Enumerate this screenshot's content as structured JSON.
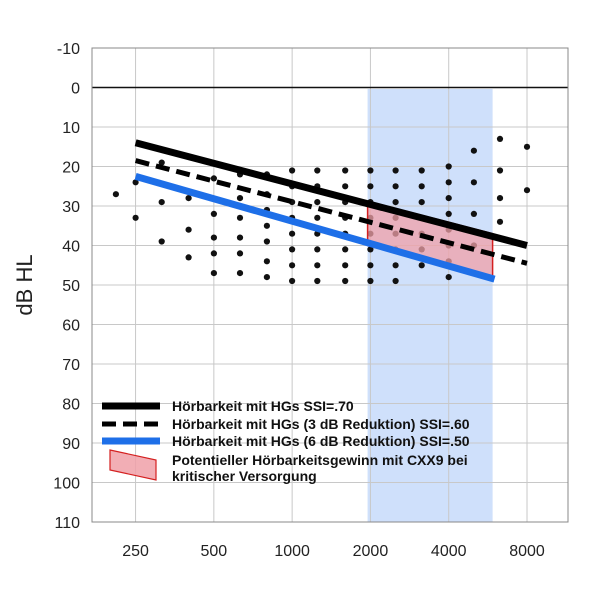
{
  "chart_data": {
    "type": "line",
    "ylabel": "dB HL",
    "x_tick_labels": [
      "250",
      "500",
      "1000",
      "2000",
      "4000",
      "8000"
    ],
    "x_ticks_hz": [
      250,
      500,
      1000,
      2000,
      4000,
      8000
    ],
    "x_scale": "log2",
    "x_range_hz": [
      170,
      11500
    ],
    "y_ticks": [
      -10,
      0,
      10,
      20,
      30,
      40,
      50,
      60,
      70,
      80,
      90,
      100,
      110
    ],
    "y_range": [
      -10,
      110
    ],
    "y_inverted": true,
    "grid": true,
    "zero_line": true,
    "highlight_band_hz": [
      1950,
      5900
    ],
    "highlight_color": "#cfe0fb",
    "series": [
      {
        "name": "Hörbarkeit mit HGs  SSI=.70",
        "style": "solid",
        "color": "#000000",
        "x_hz": [
          250,
          8000
        ],
        "y": [
          14,
          40
        ]
      },
      {
        "name": "Hörbarkeit mit HGs (3 dB Reduktion) SSI=.60",
        "style": "dashed",
        "color": "#000000",
        "x_hz": [
          250,
          8000
        ],
        "y": [
          18.5,
          44.5
        ]
      },
      {
        "name": "Hörbarkeit mit HGs (6 dB Reduktion) SSI=.50",
        "style": "solid",
        "color": "#1e6fe8",
        "x_hz": [
          250,
          6000
        ],
        "y": [
          22.5,
          48.5
        ]
      }
    ],
    "region": {
      "name": "Potentieller Hörbarkeitsgewinn mit CXX9 bei kritischer Versorgung",
      "fill": "#f0a0a8",
      "stroke": "#d42020",
      "polygon_hz_db": [
        [
          1950,
          28.8
        ],
        [
          5900,
          37.0
        ],
        [
          5900,
          48.4
        ],
        [
          1950,
          40.0
        ]
      ]
    },
    "speech_dots": [
      {
        "x_hz": 210,
        "y": [
          27
        ]
      },
      {
        "x_hz": 250,
        "y": [
          24,
          33
        ]
      },
      {
        "x_hz": 315,
        "y": [
          19,
          29,
          39
        ]
      },
      {
        "x_hz": 400,
        "y": [
          28,
          36,
          43
        ]
      },
      {
        "x_hz": 500,
        "y": [
          23,
          32,
          38,
          42,
          47
        ]
      },
      {
        "x_hz": 630,
        "y": [
          22,
          28,
          33,
          38,
          42,
          47
        ]
      },
      {
        "x_hz": 800,
        "y": [
          22,
          27,
          31,
          35,
          39,
          44,
          48
        ]
      },
      {
        "x_hz": 1000,
        "y": [
          21,
          25,
          29,
          33,
          37,
          41,
          45,
          49
        ]
      },
      {
        "x_hz": 1250,
        "y": [
          21,
          25,
          29,
          33,
          37,
          41,
          45,
          49
        ]
      },
      {
        "x_hz": 1600,
        "y": [
          21,
          25,
          29,
          33,
          37,
          41,
          45,
          49
        ]
      },
      {
        "x_hz": 2000,
        "y": [
          21,
          25,
          29,
          33,
          37,
          41,
          45,
          49
        ]
      },
      {
        "x_hz": 2500,
        "y": [
          21,
          25,
          29,
          33,
          37,
          41,
          45,
          49
        ]
      },
      {
        "x_hz": 3150,
        "y": [
          21,
          25,
          29,
          33,
          37,
          41,
          45
        ]
      },
      {
        "x_hz": 4000,
        "y": [
          20,
          24,
          28,
          32,
          36,
          40,
          44,
          48
        ]
      },
      {
        "x_hz": 5000,
        "y": [
          16,
          24,
          32,
          40
        ]
      },
      {
        "x_hz": 6300,
        "y": [
          13,
          21,
          28,
          34
        ]
      },
      {
        "x_hz": 8000,
        "y": [
          15,
          26
        ]
      }
    ],
    "legend": [
      {
        "label": "Hörbarkeit mit HGs  SSI=.70",
        "swatch": "solid-black"
      },
      {
        "label": "Hörbarkeit mit HGs (3 dB Reduktion) SSI=.60",
        "swatch": "dashed-black"
      },
      {
        "label": "Hörbarkeit mit HGs (6 dB Reduktion) SSI=.50",
        "swatch": "solid-blue"
      },
      {
        "label_lines": [
          "Potentieller Hörbarkeitsgewinn mit CXX9 bei",
          "kritischer Versorgung"
        ],
        "swatch": "red-region"
      }
    ]
  }
}
